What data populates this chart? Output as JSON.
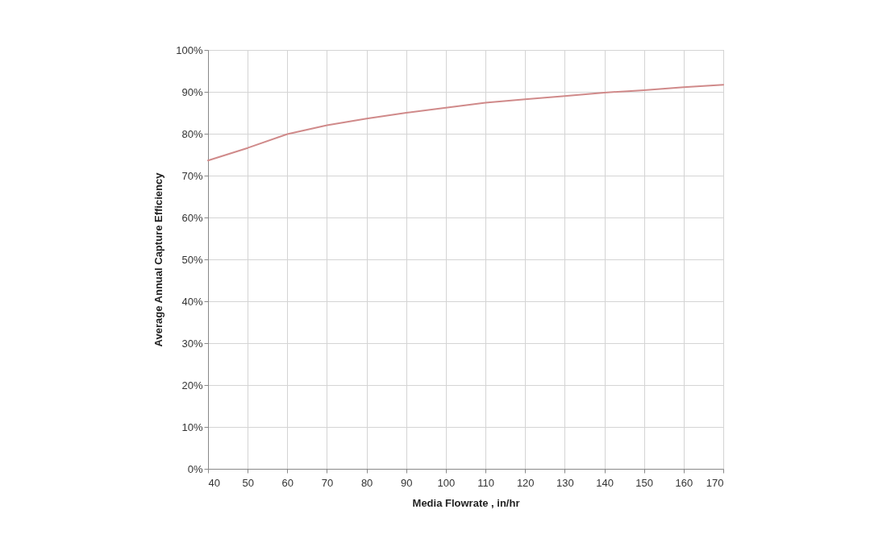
{
  "chart_data": {
    "type": "line",
    "xlabel": "Media Flowrate , in/hr",
    "ylabel": "Average Annual Capture Efficiency",
    "x": [
      40,
      50,
      60,
      70,
      80,
      90,
      100,
      110,
      120,
      130,
      140,
      150,
      160,
      170
    ],
    "series": [
      {
        "color": "#d08a8a",
        "values": [
          73.6,
          76.6,
          79.9,
          82.0,
          83.6,
          85.0,
          86.2,
          87.4,
          88.2,
          89.0,
          89.8,
          90.4,
          91.1,
          91.7
        ]
      }
    ],
    "xlim": [
      40,
      170
    ],
    "xticks": [
      40,
      50,
      60,
      70,
      80,
      90,
      100,
      110,
      120,
      130,
      140,
      150,
      160,
      170
    ],
    "ylim": [
      0,
      100
    ],
    "yticks": [
      {
        "value": 0,
        "label": "0%"
      },
      {
        "value": 10,
        "label": "10%"
      },
      {
        "value": 20,
        "label": "20%"
      },
      {
        "value": 30,
        "label": "30%"
      },
      {
        "value": 40,
        "label": "40%"
      },
      {
        "value": 50,
        "label": "50%"
      },
      {
        "value": 60,
        "label": "60%"
      },
      {
        "value": 70,
        "label": "70%"
      },
      {
        "value": 80,
        "label": "80%"
      },
      {
        "value": 90,
        "label": "90%"
      },
      {
        "value": 100,
        "label": "100%"
      }
    ],
    "grid": true,
    "marker": "none",
    "line_style": "solid"
  }
}
